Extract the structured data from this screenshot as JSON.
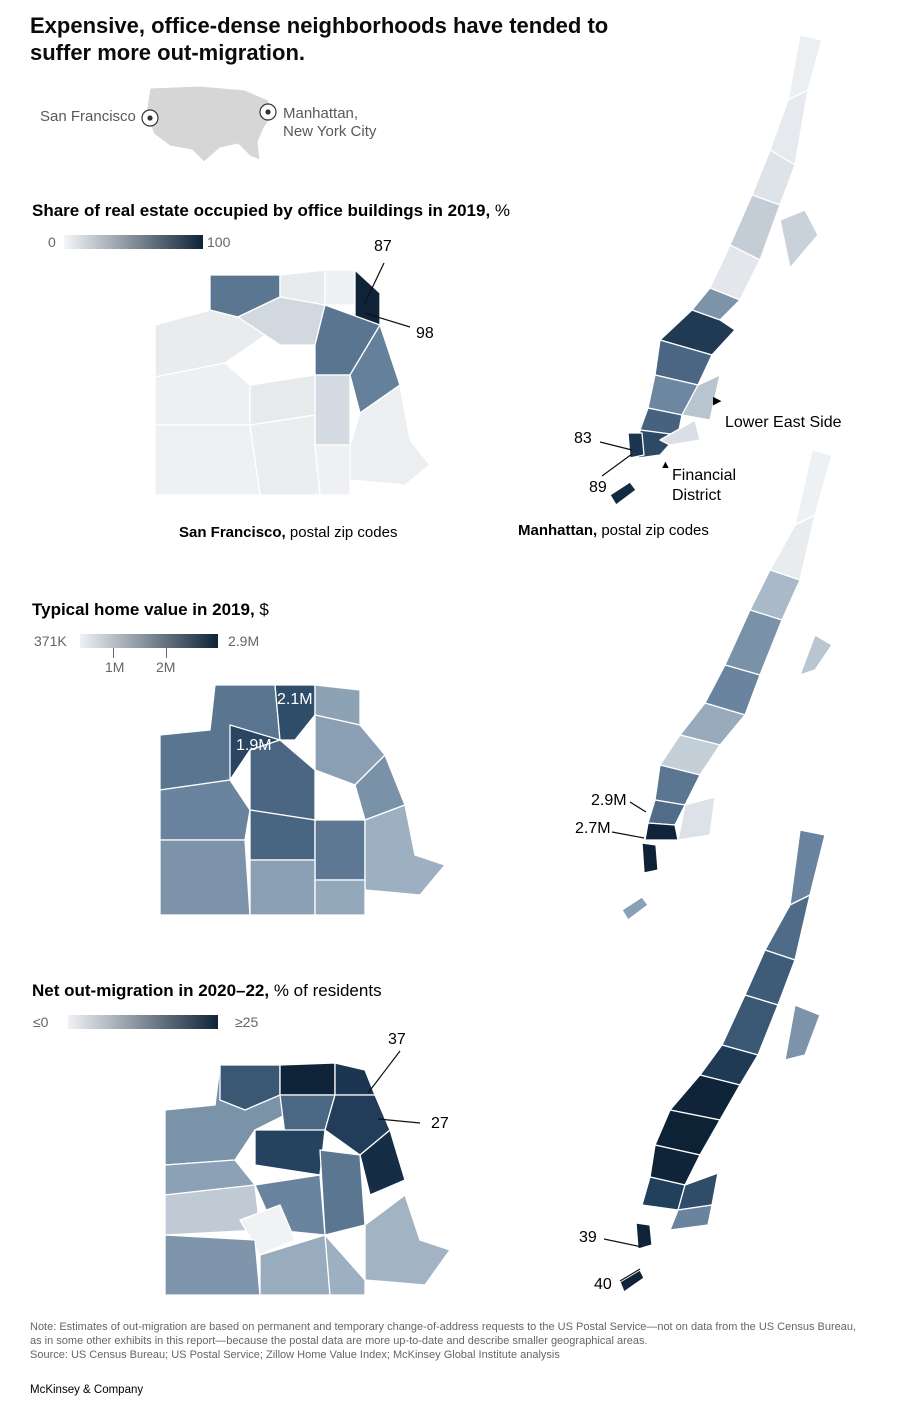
{
  "title": "Expensive, office-dense neighborhoods have tended to suffer more out-migration.",
  "locator": {
    "sf": "San Francisco",
    "ny_line1": "Manhattan,",
    "ny_line2": "New York City"
  },
  "panel1": {
    "title_bold": "Share of real estate occupied by office buildings in 2019,",
    "title_unit": " %",
    "scale_min": "0",
    "scale_max": "100",
    "sf_callouts": [
      "87",
      "98"
    ],
    "mh_callouts": [
      "83",
      "89"
    ],
    "mh_places": [
      "Lower East Side",
      "Financial",
      "District"
    ]
  },
  "captions": {
    "sf_bold": "San Francisco,",
    "sf_rest": " postal zip codes",
    "mh_bold": "Manhattan,",
    "mh_rest": " postal zip codes"
  },
  "panel2": {
    "title_bold": "Typical home value in 2019,",
    "title_unit": " $",
    "scale_min": "371K",
    "scale_max": "2.9M",
    "tick1": "1M",
    "tick2": "2M",
    "sf_callouts": [
      "2.1M",
      "1.9M"
    ],
    "mh_callouts": [
      "2.9M",
      "2.7M"
    ]
  },
  "panel3": {
    "title_bold": "Net out-migration in 2020–22,",
    "title_unit": " % of residents",
    "scale_min": "≤0",
    "scale_max": "≥25",
    "sf_callouts": [
      "37",
      "27"
    ],
    "mh_callouts": [
      "39",
      "40"
    ]
  },
  "note": "Note: Estimates of out-migration are based on permanent and temporary change-of-address requests to the US Postal Service—not on data from the US Census Bureau, as in some other exhibits in this report—because the postal data are more up-to-date and describe smaller geographical areas.",
  "source": "Source: US Census Bureau; US Postal Service; Zillow Home Value Index; McKinsey Global Institute analysis",
  "brand": "McKinsey & Company",
  "colors": {
    "dark": "#0f2438",
    "mid": "#5a7590",
    "light": "#e8ebee",
    "white": "#ffffff"
  }
}
